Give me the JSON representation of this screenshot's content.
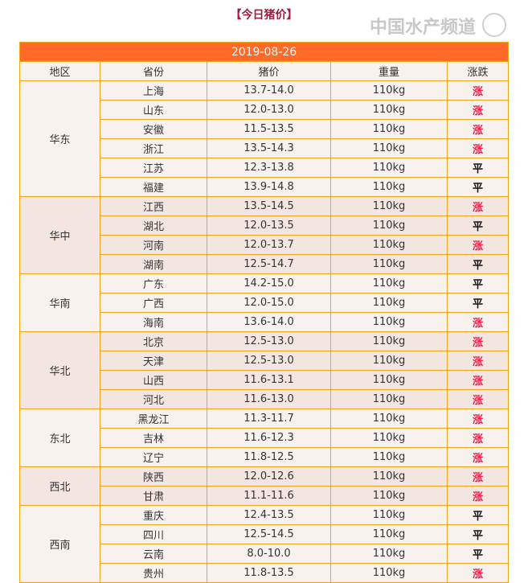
{
  "title": "【今日猪价】",
  "date": "2019-08-26",
  "headers": [
    "地区",
    "省份",
    "猪价",
    "重量",
    "涨跌"
  ],
  "colors": {
    "header_bg": "#ff6a28",
    "border": "#f3a31c",
    "up": "#ff1a4a",
    "title": "#9b1c3c"
  },
  "groups": [
    {
      "region": "华东",
      "rows": [
        [
          "上海",
          "13.7-14.0",
          "110kg",
          "涨"
        ],
        [
          "山东",
          "12.0-13.0",
          "110kg",
          "涨"
        ],
        [
          "安徽",
          "11.5-13.5",
          "110kg",
          "涨"
        ],
        [
          "浙江",
          "13.5-14.3",
          "110kg",
          "涨"
        ],
        [
          "江苏",
          "12.3-13.8",
          "110kg",
          "平"
        ],
        [
          "福建",
          "13.9-14.8",
          "110kg",
          "平"
        ]
      ]
    },
    {
      "region": "华中",
      "rows": [
        [
          "江西",
          "13.5-14.5",
          "110kg",
          "涨"
        ],
        [
          "湖北",
          "12.0-13.5",
          "110kg",
          "平"
        ],
        [
          "河南",
          "12.0-13.7",
          "110kg",
          "涨"
        ],
        [
          "湖南",
          "12.5-14.7",
          "110kg",
          "平"
        ]
      ]
    },
    {
      "region": "华南",
      "rows": [
        [
          "广东",
          "14.2-15.0",
          "110kg",
          "平"
        ],
        [
          "广西",
          "12.0-15.0",
          "110kg",
          "平"
        ],
        [
          "海南",
          "13.6-14.0",
          "110kg",
          "涨"
        ]
      ]
    },
    {
      "region": "华北",
      "rows": [
        [
          "北京",
          "12.5-13.0",
          "110kg",
          "涨"
        ],
        [
          "天津",
          "12.5-13.0",
          "110kg",
          "涨"
        ],
        [
          "山西",
          "11.6-13.1",
          "110kg",
          "涨"
        ],
        [
          "河北",
          "11.6-13.0",
          "110kg",
          "涨"
        ]
      ]
    },
    {
      "region": "东北",
      "rows": [
        [
          "黑龙江",
          "11.3-11.7",
          "110kg",
          "涨"
        ],
        [
          "吉林",
          "11.6-12.3",
          "110kg",
          "涨"
        ],
        [
          "辽宁",
          "11.8-12.5",
          "110kg",
          "涨"
        ]
      ]
    },
    {
      "region": "西北",
      "rows": [
        [
          "陕西",
          "12.0-12.6",
          "110kg",
          "涨"
        ],
        [
          "甘肃",
          "11.1-11.6",
          "110kg",
          "涨"
        ]
      ]
    },
    {
      "region": "西南",
      "rows": [
        [
          "重庆",
          "12.4-13.5",
          "110kg",
          "平"
        ],
        [
          "四川",
          "12.5-14.5",
          "110kg",
          "平"
        ],
        [
          "云南",
          "8.0-10.0",
          "110kg",
          "平"
        ],
        [
          "贵州",
          "11.8-13.5",
          "110kg",
          "涨"
        ]
      ]
    }
  ],
  "watermark": "中国水产频道"
}
